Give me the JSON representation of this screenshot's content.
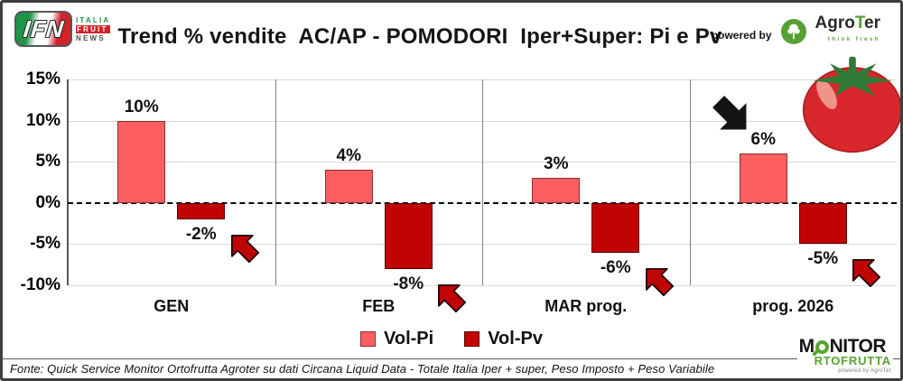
{
  "header": {
    "title": "Trend % vendite  AC/AP - POMODORI  Iper+Super: Pi e Pv",
    "powered_by": "powered by",
    "agroter": {
      "name_pre": "Agro",
      "name_t": "T",
      "name_post": "er",
      "tagline": "think fresh"
    },
    "ifn": {
      "abbr": "IFN",
      "line1": "ITALIA",
      "line2": "FRUIT",
      "line3": "NEWS"
    }
  },
  "chart_data": {
    "type": "bar",
    "title": "Trend % vendite  AC/AP - POMODORI  Iper+Super: Pi e Pv",
    "categories": [
      "GEN",
      "FEB",
      "MAR prog.",
      "prog. 2026"
    ],
    "series": [
      {
        "name": "Vol-Pi",
        "color": "#FC5F5F",
        "border": "#8a3030",
        "values": [
          10,
          4,
          3,
          6
        ],
        "labels": [
          "10%",
          "4%",
          "3%",
          "6%"
        ]
      },
      {
        "name": "Vol-Pv",
        "color": "#C00404",
        "border": "#5e0000",
        "values": [
          -2,
          -8,
          -6,
          -5
        ],
        "labels": [
          "-2%",
          "-8%",
          "-6%",
          "-5%"
        ]
      }
    ],
    "y_tick_values": [
      15,
      10,
      5,
      0,
      -5,
      -10
    ],
    "y_tick_labels": [
      "15%",
      "10%",
      "5%",
      "0%",
      "-5%",
      "-10%"
    ],
    "ylim": [
      -10,
      15
    ],
    "zero_line": "dashed",
    "gridlines": true,
    "legend_position": "bottom",
    "annotations": {
      "red_arrows": {
        "direction": "up-left",
        "color": "#C00404",
        "outline": "#210000",
        "applies_to": "each Vol-Pv value label"
      },
      "black_arrow": {
        "direction": "down-right",
        "color": "#141414",
        "group": "prog. 2026"
      }
    }
  },
  "footer": {
    "source": "Fonte: Quick Service Monitor Ortofrutta Agroter su dati Circana Liquid Data - Totale Italia Iper + super, Peso Imposto + Peso Variabile"
  },
  "monitor_logo": {
    "line1_pre": "M",
    "line1_post": "NITOR",
    "line2": "RTOFRUTTA",
    "line3": "powered by AgroTer"
  }
}
